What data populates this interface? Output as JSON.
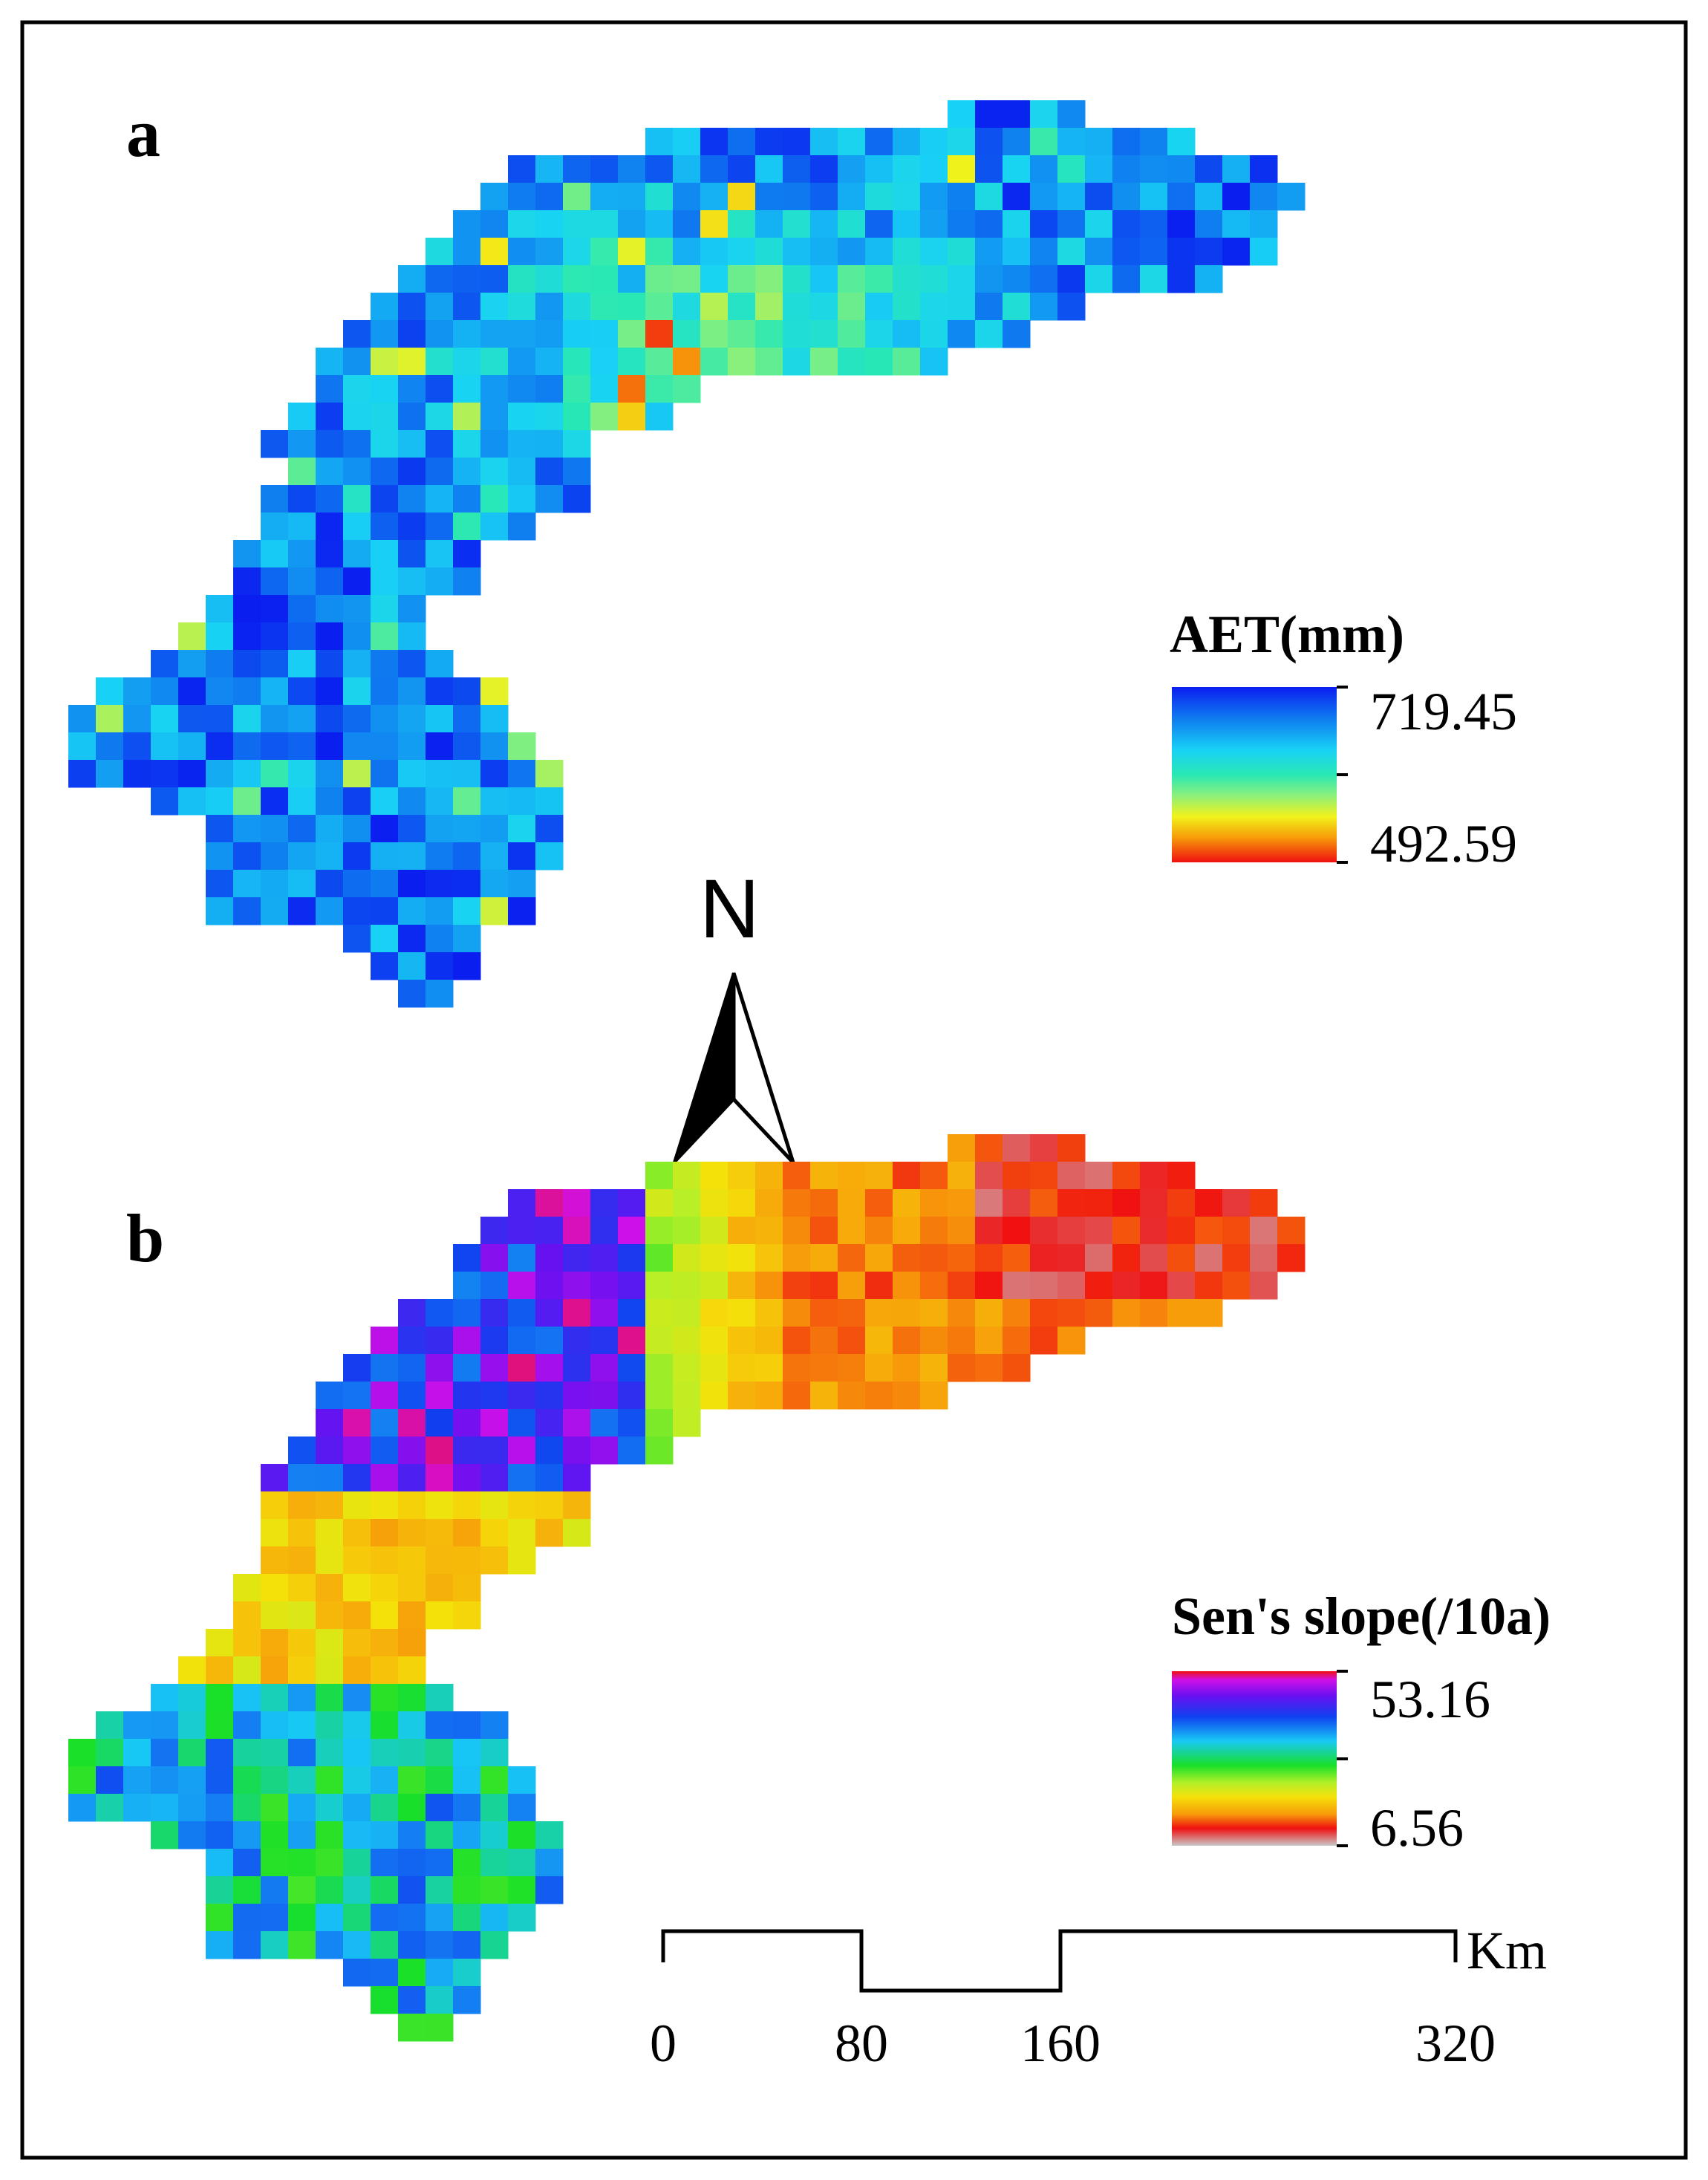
{
  "panel_a": {
    "label": "a",
    "legend": {
      "title": "AET(mm)",
      "max": "719.45",
      "min": "492.59"
    }
  },
  "panel_b": {
    "label": "b",
    "legend": {
      "title": "Sen's slope(/10a)",
      "max": "53.16",
      "min": "6.56"
    }
  },
  "north_arrow": {
    "label": "N"
  },
  "scale_bar": {
    "unit": "Km",
    "ticks": [
      "0",
      "80",
      "160",
      "320"
    ]
  },
  "colors": {
    "frame": "#000000",
    "aet_ramp": [
      "#0a1ef0",
      "#0f7cf0",
      "#18d2f5",
      "#29e8b4",
      "#8cf07a",
      "#f2f21a",
      "#f79a0a",
      "#f01010"
    ],
    "slope_ramp": [
      "#f01010",
      "#d010e8",
      "#6a10f0",
      "#1040f0",
      "#18c8f5",
      "#18e028",
      "#b4f028",
      "#f5e10a",
      "#f79a0a",
      "#f01010",
      "#c8c8c8"
    ]
  }
}
